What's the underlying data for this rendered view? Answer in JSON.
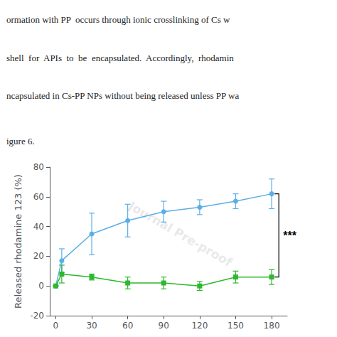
{
  "chart_data": {
    "type": "line",
    "annotations": [
      "ormation with PP  occurs through ionic crosslinking of Cs w",
      "shell  for  APIs  to  be  encapsulated.  Accordingly,  rhodamin",
      "ncapsulated in Cs-PP NPs without being released unless PP wa",
      "igure 6."
    ],
    "watermark": "Journal Pre-proof",
    "ylabel": "Released rhodamine 123 (%)",
    "x": [
      0,
      5,
      30,
      60,
      90,
      120,
      150,
      180
    ],
    "series": [
      {
        "color": "#5baee8",
        "marker": "circle",
        "line_style": "solid",
        "values": [
          0,
          17,
          35,
          44,
          50,
          53,
          57,
          62
        ],
        "yerr": [
          0,
          8,
          14,
          11,
          7,
          5,
          5,
          10
        ]
      },
      {
        "color": "#2db82d",
        "marker": "square",
        "line_style": "solid",
        "values": [
          0,
          8,
          6,
          2,
          2,
          0,
          6,
          6
        ],
        "yerr": [
          0,
          6,
          2,
          4,
          4,
          3,
          4,
          5
        ]
      }
    ],
    "xlim": [
      -5,
      193
    ],
    "xticks": [
      0,
      30,
      60,
      90,
      120,
      150,
      180
    ],
    "ylim": [
      -20,
      80
    ],
    "yticks": [
      -20,
      0,
      20,
      40,
      60,
      80
    ],
    "grid": false,
    "bracket": {
      "x": 186,
      "y": [
        6,
        62
      ],
      "text": "***"
    }
  }
}
